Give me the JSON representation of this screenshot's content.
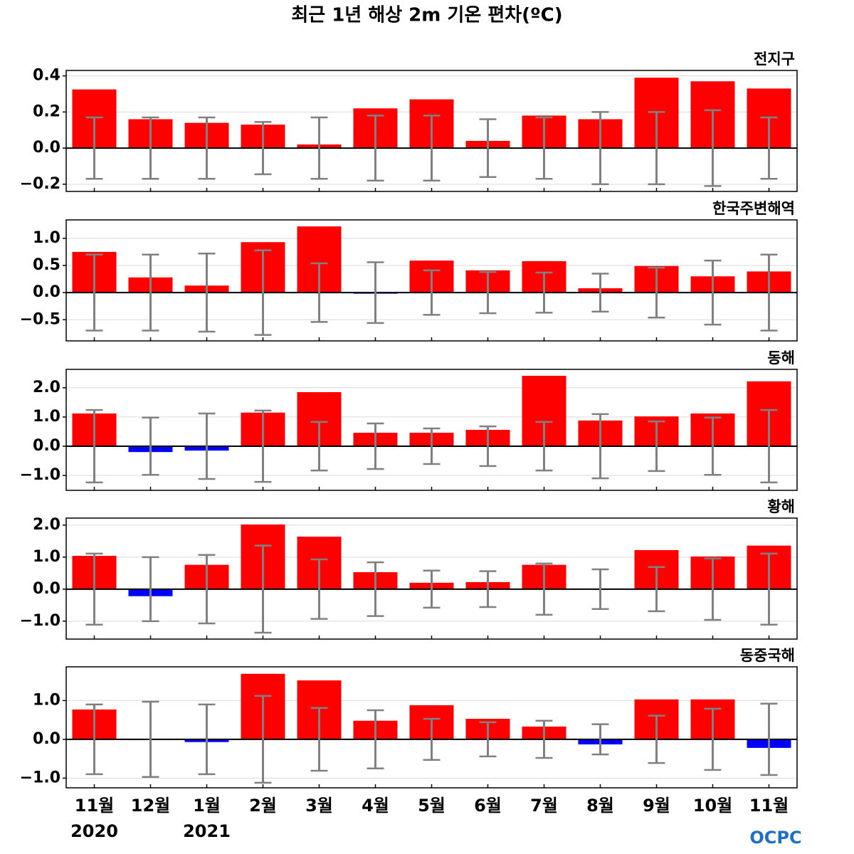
{
  "title": "최근 1년 해상 2m 기온 편차(ºC)",
  "logo": "OCPC",
  "chart_data": [
    {
      "type": "bar",
      "title": "전지구",
      "color": "#ff0000",
      "negative_color": "#0000ff",
      "error_color": "#808080",
      "grid": true,
      "values": [
        0.325,
        0.16,
        0.14,
        0.13,
        0.02,
        0.22,
        0.27,
        0.04,
        0.18,
        0.16,
        0.39,
        0.37,
        0.33
      ],
      "errors": [
        0.17,
        0.17,
        0.17,
        0.145,
        0.17,
        0.18,
        0.18,
        0.16,
        0.17,
        0.2,
        0.2,
        0.21,
        0.17
      ],
      "ylim": [
        -0.24,
        0.43
      ],
      "yticks": [
        0.4,
        0.2,
        {
          "value": 0,
          "label": "0.0"
        },
        {
          "value": -0.2,
          "label": "−0.2"
        }
      ]
    },
    {
      "type": "bar",
      "title": "한국주변해역",
      "color": "#ff0000",
      "negative_color": "#0000ff",
      "error_color": "#808080",
      "grid": true,
      "values": [
        0.75,
        0.28,
        0.13,
        0.93,
        1.22,
        -0.01,
        0.59,
        0.41,
        0.58,
        0.08,
        0.49,
        0.3,
        0.39
      ],
      "errors": [
        0.7,
        0.7,
        0.72,
        0.78,
        0.54,
        0.56,
        0.41,
        0.38,
        0.37,
        0.35,
        0.46,
        0.59,
        0.7
      ],
      "ylim": [
        -0.89,
        1.34
      ],
      "yticks": [
        {
          "value": 1,
          "label": "1.0"
        },
        0.5,
        {
          "value": 0,
          "label": "0.0"
        },
        {
          "value": -0.5,
          "label": "−0.5"
        }
      ]
    },
    {
      "type": "bar",
      "title": "동해",
      "color": "#ff0000",
      "negative_color": "#0000ff",
      "error_color": "#808080",
      "grid": true,
      "values": [
        1.12,
        -0.2,
        -0.15,
        1.15,
        1.85,
        0.46,
        0.46,
        0.56,
        2.41,
        0.88,
        1.02,
        1.12,
        2.22
      ],
      "errors": [
        1.24,
        0.98,
        1.12,
        1.22,
        0.83,
        0.78,
        0.61,
        0.68,
        0.83,
        1.1,
        0.85,
        0.98,
        1.24
      ],
      "ylim": [
        -1.51,
        2.63
      ],
      "yticks": [
        {
          "value": 2,
          "label": "2.0"
        },
        {
          "value": 1,
          "label": "1.0"
        },
        {
          "value": 0,
          "label": "0.0"
        },
        {
          "value": -1,
          "label": "−1.0"
        }
      ]
    },
    {
      "type": "bar",
      "title": "황해",
      "color": "#ff0000",
      "negative_color": "#0000ff",
      "error_color": "#808080",
      "grid": true,
      "values": [
        1.04,
        -0.22,
        0.76,
        2.02,
        1.64,
        0.53,
        0.2,
        0.22,
        0.76,
        0.02,
        1.22,
        1.02,
        1.36
      ],
      "errors": [
        1.11,
        1.0,
        1.07,
        1.36,
        0.93,
        0.84,
        0.58,
        0.56,
        0.8,
        0.62,
        0.69,
        0.96,
        1.11
      ],
      "ylim": [
        -1.56,
        2.22
      ],
      "yticks": [
        {
          "value": 2,
          "label": "2.0"
        },
        {
          "value": 1,
          "label": "1.0"
        },
        {
          "value": 0,
          "label": "0.0"
        },
        {
          "value": -1,
          "label": "−1.0"
        }
      ]
    },
    {
      "type": "bar",
      "title": "동중국해",
      "color": "#ff0000",
      "negative_color": "#0000ff",
      "error_color": "#808080",
      "grid": true,
      "categories": [
        "11월",
        "12월",
        "1월",
        "2월",
        "3월",
        "4월",
        "5월",
        "6월",
        "7월",
        "8월",
        "9월",
        "10월",
        "11월"
      ],
      "year_labels": [
        "2020",
        null,
        "2021",
        null,
        null,
        null,
        null,
        null,
        null,
        null,
        null,
        null,
        null
      ],
      "values": [
        0.77,
        0.01,
        -0.07,
        1.69,
        1.52,
        0.48,
        0.88,
        0.53,
        0.33,
        -0.13,
        1.03,
        1.03,
        -0.22
      ],
      "errors": [
        0.9,
        0.97,
        0.9,
        1.12,
        0.81,
        0.75,
        0.53,
        0.44,
        0.48,
        0.39,
        0.61,
        0.79,
        0.92
      ],
      "ylim": [
        -1.25,
        1.87
      ],
      "yticks": [
        {
          "value": 1,
          "label": "1.0"
        },
        {
          "value": 0,
          "label": "0.0"
        },
        {
          "value": -1,
          "label": "−1.0"
        }
      ]
    }
  ]
}
